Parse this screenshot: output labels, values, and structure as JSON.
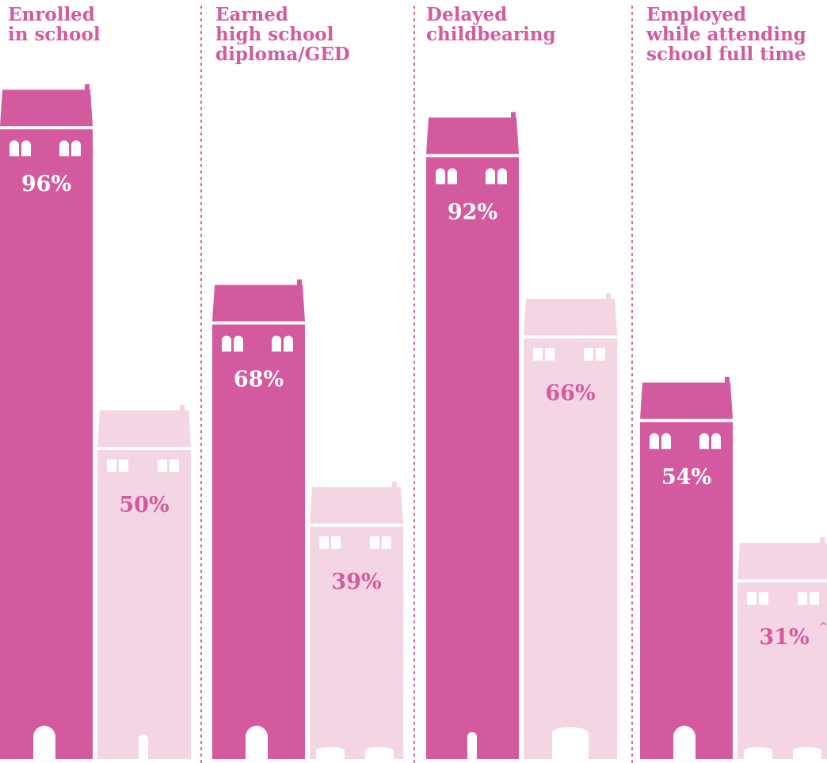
{
  "chart_data": {
    "type": "bar",
    "categories": [
      "Enrolled\nin school",
      "Earned\nhigh school\ndiploma/GED",
      "Delayed\nchildbearing",
      "Employed\nwhile attending\nschool full time"
    ],
    "series": [
      {
        "values": [
          96,
          68,
          92,
          54
        ]
      },
      {
        "values": [
          50,
          39,
          66,
          31
        ]
      }
    ],
    "data_labels": [
      [
        "96%",
        "68%",
        "92%",
        "54%"
      ],
      [
        "50%",
        "39%",
        "66%",
        "31%"
      ]
    ],
    "footnote_marks": [
      "",
      "",
      "",
      "^"
    ],
    "ylim": [
      0,
      100
    ],
    "grid": false,
    "legend": "none"
  },
  "colors": {
    "primary": "#d45a9f",
    "secondary": "#f4d5e3",
    "divider": "#d45a9f",
    "label_text": "#d45a9f",
    "primary_value_text": "#ffffff",
    "secondary_value_text": "#d45a9f"
  }
}
